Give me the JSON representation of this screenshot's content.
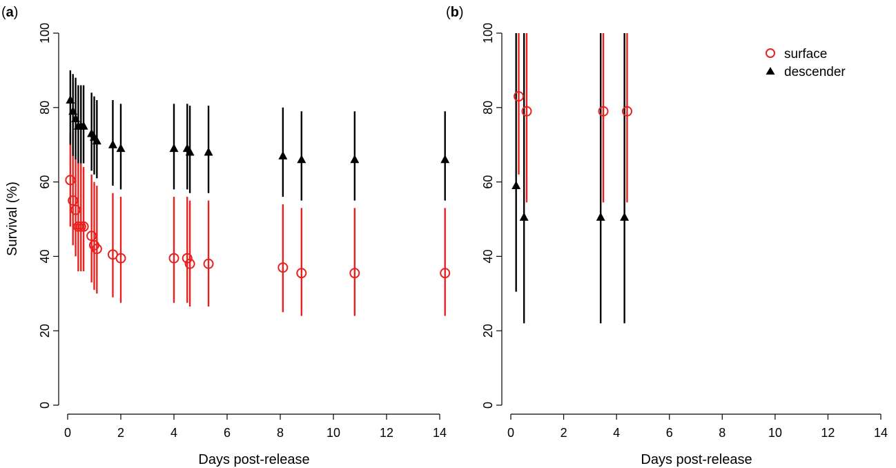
{
  "panels": [
    {
      "label_open": "(",
      "label_letter": "a",
      "label_close": ")"
    },
    {
      "label_open": "(",
      "label_letter": "b",
      "label_close": ")"
    }
  ],
  "legend": {
    "items": [
      {
        "label": "surface"
      },
      {
        "label": "descender"
      }
    ]
  },
  "chart_data": [
    {
      "type": "scatter",
      "panel": "a",
      "xlabel": "Days post-release",
      "ylabel": "Survival (%)",
      "xlim": [
        0,
        14
      ],
      "ylim": [
        0,
        100
      ],
      "x_ticks": [
        0,
        2,
        4,
        6,
        8,
        10,
        12,
        14
      ],
      "y_ticks": [
        0,
        20,
        40,
        60,
        80,
        100
      ],
      "error_bars": true,
      "series": [
        {
          "name": "surface",
          "marker": "open-circle",
          "color": "#e8211f",
          "points": [
            {
              "x": 0.1,
              "y": 60.5,
              "lo": 48,
              "hi": 73
            },
            {
              "x": 0.2,
              "y": 55,
              "lo": 43,
              "hi": 68
            },
            {
              "x": 0.3,
              "y": 52.5,
              "lo": 40,
              "hi": 66
            },
            {
              "x": 0.4,
              "y": 48,
              "lo": 36,
              "hi": 65
            },
            {
              "x": 0.5,
              "y": 48,
              "lo": 36,
              "hi": 65
            },
            {
              "x": 0.6,
              "y": 48,
              "lo": 36,
              "hi": 64
            },
            {
              "x": 0.9,
              "y": 45.5,
              "lo": 33,
              "hi": 62
            },
            {
              "x": 1.0,
              "y": 43,
              "lo": 31,
              "hi": 60
            },
            {
              "x": 1.1,
              "y": 42,
              "lo": 30,
              "hi": 59
            },
            {
              "x": 1.7,
              "y": 40.5,
              "lo": 29,
              "hi": 57
            },
            {
              "x": 2.0,
              "y": 39.5,
              "lo": 27.5,
              "hi": 56
            },
            {
              "x": 4.0,
              "y": 39.5,
              "lo": 27.5,
              "hi": 56
            },
            {
              "x": 4.5,
              "y": 39.5,
              "lo": 27.5,
              "hi": 56
            },
            {
              "x": 4.6,
              "y": 38,
              "lo": 26.5,
              "hi": 55
            },
            {
              "x": 5.3,
              "y": 38,
              "lo": 26.5,
              "hi": 55
            },
            {
              "x": 8.1,
              "y": 37,
              "lo": 25,
              "hi": 54
            },
            {
              "x": 8.8,
              "y": 35.5,
              "lo": 24,
              "hi": 53
            },
            {
              "x": 10.8,
              "y": 35.5,
              "lo": 24,
              "hi": 53
            },
            {
              "x": 14.2,
              "y": 35.5,
              "lo": 24,
              "hi": 53
            }
          ]
        },
        {
          "name": "descender",
          "marker": "filled-triangle",
          "color": "#000000",
          "points": [
            {
              "x": 0.1,
              "y": 82,
              "lo": 70,
              "hi": 90
            },
            {
              "x": 0.2,
              "y": 79,
              "lo": 67,
              "hi": 89
            },
            {
              "x": 0.3,
              "y": 77,
              "lo": 66,
              "hi": 88
            },
            {
              "x": 0.4,
              "y": 75,
              "lo": 65,
              "hi": 86
            },
            {
              "x": 0.5,
              "y": 75,
              "lo": 65,
              "hi": 86
            },
            {
              "x": 0.6,
              "y": 75,
              "lo": 65,
              "hi": 86
            },
            {
              "x": 0.9,
              "y": 73,
              "lo": 63,
              "hi": 84
            },
            {
              "x": 1.0,
              "y": 72,
              "lo": 62,
              "hi": 83
            },
            {
              "x": 1.1,
              "y": 71,
              "lo": 61,
              "hi": 82
            },
            {
              "x": 1.7,
              "y": 70,
              "lo": 59,
              "hi": 82
            },
            {
              "x": 2.0,
              "y": 69,
              "lo": 58,
              "hi": 81
            },
            {
              "x": 4.0,
              "y": 69,
              "lo": 58,
              "hi": 81
            },
            {
              "x": 4.5,
              "y": 69,
              "lo": 58,
              "hi": 81
            },
            {
              "x": 4.6,
              "y": 68,
              "lo": 57,
              "hi": 80.5
            },
            {
              "x": 5.3,
              "y": 68,
              "lo": 57,
              "hi": 80.5
            },
            {
              "x": 8.1,
              "y": 67,
              "lo": 56,
              "hi": 80
            },
            {
              "x": 8.8,
              "y": 66,
              "lo": 55,
              "hi": 79
            },
            {
              "x": 10.8,
              "y": 66,
              "lo": 55,
              "hi": 79
            },
            {
              "x": 14.2,
              "y": 66,
              "lo": 55,
              "hi": 79
            }
          ]
        }
      ]
    },
    {
      "type": "scatter",
      "panel": "b",
      "xlabel": "Days post-release",
      "ylabel": "",
      "xlim": [
        0,
        14
      ],
      "ylim": [
        0,
        100
      ],
      "x_ticks": [
        0,
        2,
        4,
        6,
        8,
        10,
        12,
        14
      ],
      "y_ticks": [
        0,
        20,
        40,
        60,
        80,
        100
      ],
      "error_bars": true,
      "series": [
        {
          "name": "surface",
          "marker": "open-circle",
          "color": "#e8211f",
          "points": [
            {
              "x": 0.3,
              "y": 83,
              "lo": 62,
              "hi": 100
            },
            {
              "x": 0.6,
              "y": 79,
              "lo": 54.5,
              "hi": 100
            },
            {
              "x": 3.5,
              "y": 79,
              "lo": 54.5,
              "hi": 100
            },
            {
              "x": 4.4,
              "y": 79,
              "lo": 54.5,
              "hi": 100
            }
          ]
        },
        {
          "name": "descender",
          "marker": "filled-triangle",
          "color": "#000000",
          "points": [
            {
              "x": 0.2,
              "y": 59,
              "lo": 30.5,
              "hi": 100
            },
            {
              "x": 0.5,
              "y": 50.5,
              "lo": 22,
              "hi": 100
            },
            {
              "x": 3.4,
              "y": 50.5,
              "lo": 22,
              "hi": 100
            },
            {
              "x": 4.3,
              "y": 50.5,
              "lo": 22,
              "hi": 100
            }
          ]
        }
      ]
    }
  ]
}
